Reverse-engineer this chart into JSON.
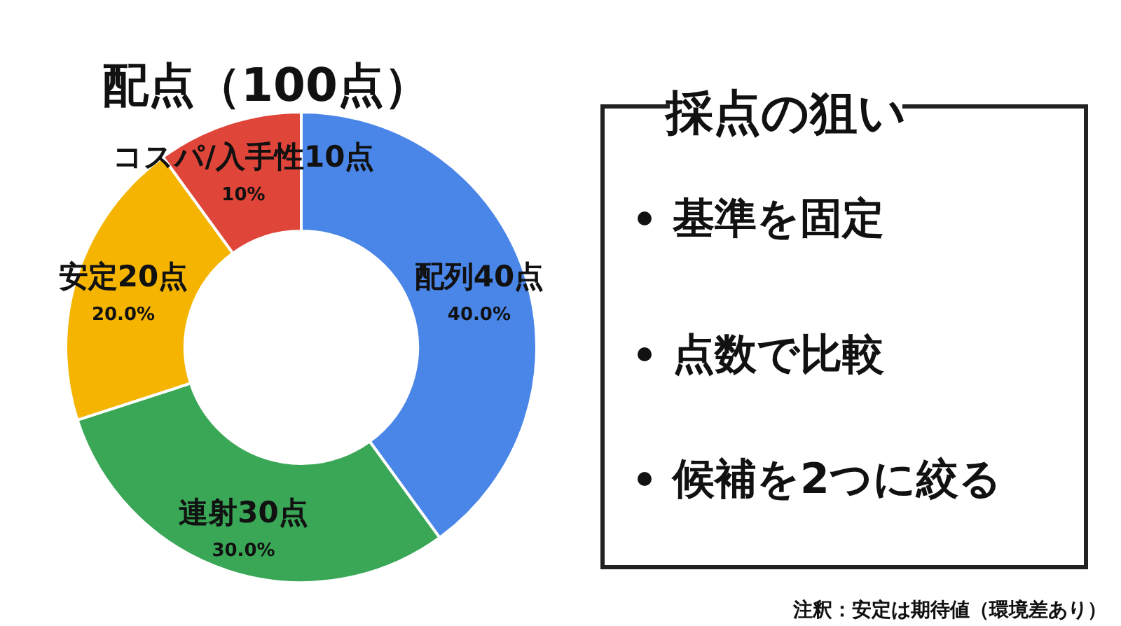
{
  "chart_data": [
    {
      "type": "donut",
      "title": "配点（100点）",
      "categories": [
        "配列40点",
        "連射30点",
        "安定20点",
        "コスパ/入手性10点"
      ],
      "values": [
        40,
        30,
        20,
        10
      ],
      "value_labels": [
        "40.0%",
        "30.0%",
        "20.0%",
        "10%"
      ],
      "colors": [
        "#4a86e8",
        "#3aa757",
        "#f4b400",
        "#e0453a"
      ]
    },
    {
      "type": "other",
      "title": "採点の狙い",
      "annotations": [
        "基準を固定",
        "点数で比較",
        "候補を2つに絞る",
        "注釈：安定は期待値（環境差あり）"
      ]
    }
  ]
}
